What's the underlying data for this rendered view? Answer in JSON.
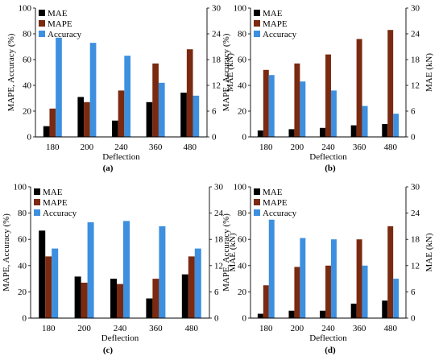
{
  "figure": {
    "x_tick_labels": [
      "180",
      "200",
      "240",
      "360",
      "480"
    ],
    "y_left_label": "MAPE, Accuracy (%)",
    "y_right_label": "MAE (kN)",
    "x_label": "Deflection"
  },
  "chart_data": [
    {
      "type": "bar",
      "caption": "(a)",
      "categories": [
        "180",
        "200",
        "240",
        "360",
        "480"
      ],
      "xlabel": "Deflection",
      "ylabel": "MAPE, Accuracy (%)",
      "y2label": "MAE (kN)",
      "ylim": [
        0,
        100
      ],
      "y2lim": [
        0,
        30
      ],
      "yticks": [
        0,
        20,
        40,
        60,
        80,
        100
      ],
      "y2ticks": [
        0,
        6,
        12,
        18,
        24,
        30
      ],
      "legend": "top-left",
      "series": [
        {
          "name": "MAE",
          "axis": "right",
          "color": "#000000",
          "values": [
            2.5,
            9.3,
            3.8,
            8.1,
            10.3
          ]
        },
        {
          "name": "MAPE",
          "axis": "left",
          "color": "#7a2a10",
          "values": [
            22,
            27,
            36,
            57,
            68
          ]
        },
        {
          "name": "Accuracy",
          "axis": "left",
          "color": "#3d8fe0",
          "values": [
            77,
            73,
            63,
            42,
            32
          ]
        }
      ]
    },
    {
      "type": "bar",
      "caption": "(b)",
      "categories": [
        "180",
        "200",
        "240",
        "360",
        "480"
      ],
      "xlabel": "Deflection",
      "ylabel": "MAPE, Accuracy (%)",
      "y2label": "MAE (kN)",
      "ylim": [
        0,
        100
      ],
      "y2lim": [
        0,
        30
      ],
      "yticks": [
        0,
        20,
        40,
        60,
        80,
        100
      ],
      "y2ticks": [
        0,
        6,
        12,
        18,
        24,
        30
      ],
      "legend": "top-left",
      "series": [
        {
          "name": "MAE",
          "axis": "right",
          "color": "#000000",
          "values": [
            1.5,
            1.8,
            2.1,
            2.7,
            3.0
          ]
        },
        {
          "name": "MAPE",
          "axis": "left",
          "color": "#7a2a10",
          "values": [
            52,
            57,
            64,
            76,
            83
          ]
        },
        {
          "name": "Accuracy",
          "axis": "left",
          "color": "#3d8fe0",
          "values": [
            48,
            43,
            36,
            24,
            18
          ]
        }
      ]
    },
    {
      "type": "bar",
      "caption": "(c)",
      "categories": [
        "180",
        "200",
        "240",
        "360",
        "480"
      ],
      "xlabel": "Deflection",
      "ylabel": "MAPE, Accuracy (%)",
      "y2label": "MAE (kN)",
      "ylim": [
        0,
        100
      ],
      "y2lim": [
        0,
        30
      ],
      "yticks": [
        0,
        20,
        40,
        60,
        80,
        100
      ],
      "y2ticks": [
        0,
        6,
        12,
        18,
        24,
        30
      ],
      "legend": "top-left",
      "series": [
        {
          "name": "MAE",
          "axis": "right",
          "color": "#000000",
          "values": [
            20.0,
            9.5,
            9.0,
            4.5,
            10.0
          ]
        },
        {
          "name": "MAPE",
          "axis": "left",
          "color": "#7a2a10",
          "values": [
            47,
            27,
            26,
            30,
            47
          ]
        },
        {
          "name": "Accuracy",
          "axis": "left",
          "color": "#3d8fe0",
          "values": [
            53,
            73,
            74,
            70,
            53
          ]
        }
      ]
    },
    {
      "type": "bar",
      "caption": "(d)",
      "categories": [
        "180",
        "200",
        "240",
        "360",
        "480"
      ],
      "xlabel": "Deflection",
      "ylabel": "MAPE, Accuracy (%)",
      "y2label": "MAE (kN)",
      "ylim": [
        0,
        100
      ],
      "y2lim": [
        0,
        30
      ],
      "yticks": [
        0,
        20,
        40,
        60,
        80,
        100
      ],
      "y2ticks": [
        0,
        6,
        12,
        18,
        24,
        30
      ],
      "legend": "top-left",
      "series": [
        {
          "name": "MAE",
          "axis": "right",
          "color": "#000000",
          "values": [
            1.0,
            1.7,
            1.7,
            3.3,
            4.0
          ]
        },
        {
          "name": "MAPE",
          "axis": "left",
          "color": "#7a2a10",
          "values": [
            25,
            39,
            40,
            60,
            70
          ]
        },
        {
          "name": "Accuracy",
          "axis": "left",
          "color": "#3d8fe0",
          "values": [
            75,
            61,
            60,
            40,
            30
          ]
        }
      ]
    }
  ]
}
